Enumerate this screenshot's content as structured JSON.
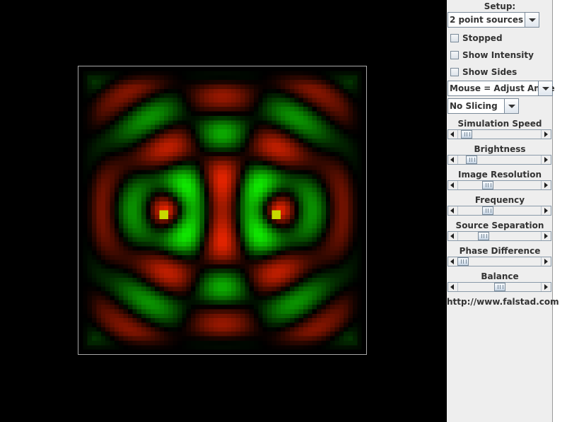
{
  "simulation": {
    "view_name": "wave-field",
    "sources": [
      {
        "id": "left"
      },
      {
        "id": "right"
      }
    ]
  },
  "panel": {
    "setup_label": "Setup:",
    "setup_value": "2 point sources",
    "checkboxes": [
      {
        "label": "Stopped",
        "checked": false
      },
      {
        "label": "Show Intensity",
        "checked": false
      },
      {
        "label": "Show Sides",
        "checked": false
      }
    ],
    "mouse_mode": "Mouse = Adjust Angle",
    "slicing": "No Slicing",
    "sliders": [
      {
        "label": "Simulation Speed",
        "value": 0.1
      },
      {
        "label": "Brightness",
        "value": 0.16
      },
      {
        "label": "Image Resolution",
        "value": 0.36
      },
      {
        "label": "Frequency",
        "value": 0.36
      },
      {
        "label": "Source Separation",
        "value": 0.31
      },
      {
        "label": "Phase Difference",
        "value": 0.06
      },
      {
        "label": "Balance",
        "value": 0.5
      }
    ],
    "link": "http://www.falstad.com"
  },
  "colors": {
    "background": "#000000",
    "panel": "#eeeeee",
    "positive": "#ff2a00",
    "negative": "#2fe000",
    "source": "#c8d800"
  }
}
